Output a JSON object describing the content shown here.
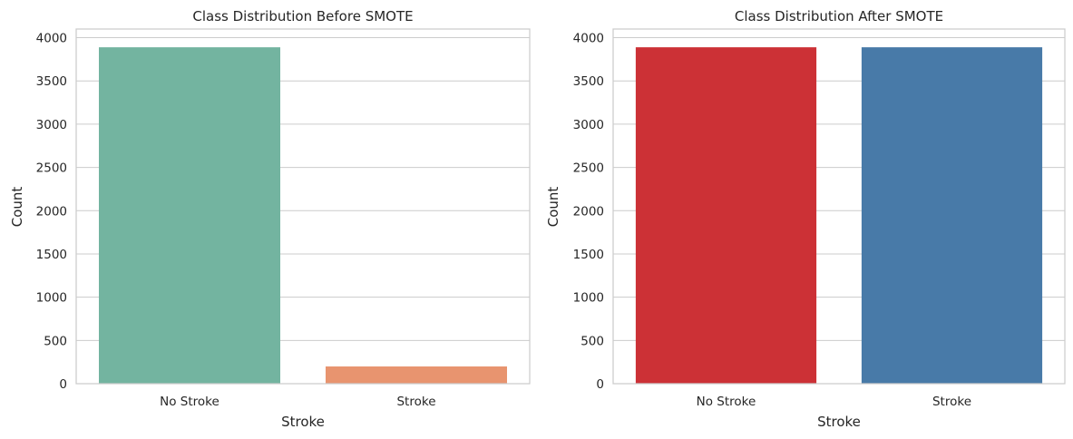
{
  "chart_data": [
    {
      "type": "bar",
      "title": "Class Distribution Before SMOTE",
      "xlabel": "Stroke",
      "ylabel": "Count",
      "categories": [
        "No Stroke",
        "Stroke"
      ],
      "values": [
        3889,
        199
      ],
      "colors": [
        "#73b4a0",
        "#e8946f"
      ],
      "ylim": [
        0,
        4100
      ],
      "yticks": [
        0,
        500,
        1000,
        1500,
        2000,
        2500,
        3000,
        3500,
        4000
      ],
      "grid": true
    },
    {
      "type": "bar",
      "title": "Class Distribution After SMOTE",
      "xlabel": "Stroke",
      "ylabel": "Count",
      "categories": [
        "No Stroke",
        "Stroke"
      ],
      "values": [
        3889,
        3889
      ],
      "colors": [
        "#cc3136",
        "#487aa8"
      ],
      "ylim": [
        0,
        4100
      ],
      "yticks": [
        0,
        500,
        1000,
        1500,
        2000,
        2500,
        3000,
        3500,
        4000
      ],
      "grid": true
    }
  ]
}
